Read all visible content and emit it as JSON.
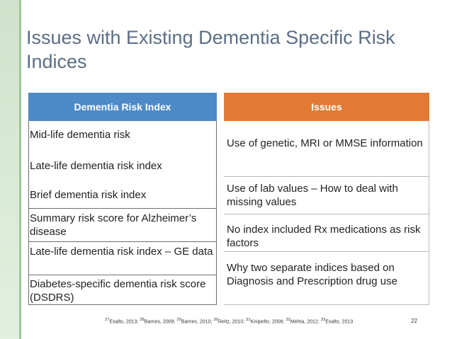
{
  "title": "Issues with Existing Dementia Specific Risk Indices",
  "table": {
    "left_header": "Dementia Risk Index",
    "right_header": "Issues",
    "left_rows": [
      "Mid-life dementia risk",
      "Late-life dementia risk index",
      "Brief dementia risk index",
      "Summary risk score for Alzheimer’s disease",
      "Late-life dementia risk index – GE data",
      "Diabetes-specific dementia risk score (DSDRS)"
    ],
    "right_rows": [
      "Use of genetic, MRI or MMSE information",
      "Use of lab values – How to deal with missing values",
      "No index included Rx medications as risk factors",
      "Why two separate indices based on Diagnosis and Prescription drug use"
    ]
  },
  "footer": {
    "refs": [
      {
        "sup": "27",
        "text": "Exalto, 2013; "
      },
      {
        "sup": "28",
        "text": "Barnes, 2009; "
      },
      {
        "sup": "29",
        "text": "Barnes, 2010; "
      },
      {
        "sup": "30",
        "text": "Reitz, 2010; "
      },
      {
        "sup": "31",
        "text": "Kivipelto, 2006; "
      },
      {
        "sup": "32",
        "text": "Mehta, 2012; "
      },
      {
        "sup": "33",
        "text": "Exalto, 2013"
      }
    ],
    "page_number": "22"
  }
}
